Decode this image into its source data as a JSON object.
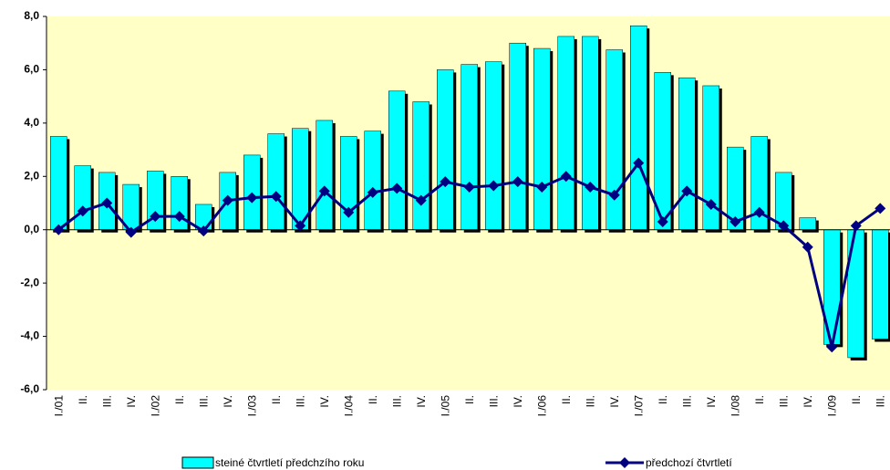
{
  "chart_data": {
    "type": "bar-line",
    "categories": [
      "I./01",
      "II.",
      "III.",
      "IV.",
      "I./02",
      "II.",
      "III.",
      "IV.",
      "I./03",
      "II.",
      "III.",
      "IV.",
      "I./04",
      "II.",
      "III.",
      "IV.",
      "I./05",
      "II.",
      "III.",
      "IV.",
      "I./06",
      "II.",
      "III.",
      "IV.",
      "I./07",
      "II.",
      "III.",
      "IV.",
      "I./08",
      "II.",
      "III.",
      "IV.",
      "I./09",
      "II.",
      "III."
    ],
    "series": [
      {
        "name": "steiné čtvrtletí předchzího roku",
        "type": "bar",
        "color": "#00ffff",
        "values": [
          3.5,
          2.4,
          2.15,
          1.7,
          2.2,
          2.0,
          0.95,
          2.15,
          2.8,
          3.6,
          3.8,
          4.1,
          3.5,
          3.7,
          5.2,
          4.8,
          6.0,
          6.2,
          6.3,
          7.0,
          6.8,
          7.25,
          7.25,
          6.75,
          7.65,
          5.9,
          5.7,
          5.4,
          3.1,
          3.5,
          2.15,
          0.45,
          -4.3,
          -4.8,
          -4.1
        ]
      },
      {
        "name": "předchozí čtvrtletí",
        "type": "line",
        "color": "#000080",
        "values": [
          0.0,
          0.7,
          1.0,
          -0.1,
          0.5,
          0.5,
          -0.05,
          1.1,
          1.2,
          1.25,
          0.15,
          1.45,
          0.65,
          1.4,
          1.55,
          1.1,
          1.8,
          1.6,
          1.65,
          1.8,
          1.6,
          2.0,
          1.6,
          1.3,
          2.5,
          0.3,
          1.45,
          0.95,
          0.3,
          0.65,
          0.15,
          -0.65,
          -4.4,
          0.15,
          0.8
        ]
      }
    ],
    "ylim": [
      -6,
      8
    ],
    "yticks": [
      {
        "value": -6,
        "label": "-6,0"
      },
      {
        "value": -4,
        "label": "-4,0"
      },
      {
        "value": -2,
        "label": "-2,0"
      },
      {
        "value": 0,
        "label": "0,0"
      },
      {
        "value": 2,
        "label": "2,0"
      },
      {
        "value": 4,
        "label": "4,0"
      },
      {
        "value": 6,
        "label": "6,0"
      },
      {
        "value": 8,
        "label": "8,0"
      }
    ],
    "background": "#ffffc6"
  }
}
